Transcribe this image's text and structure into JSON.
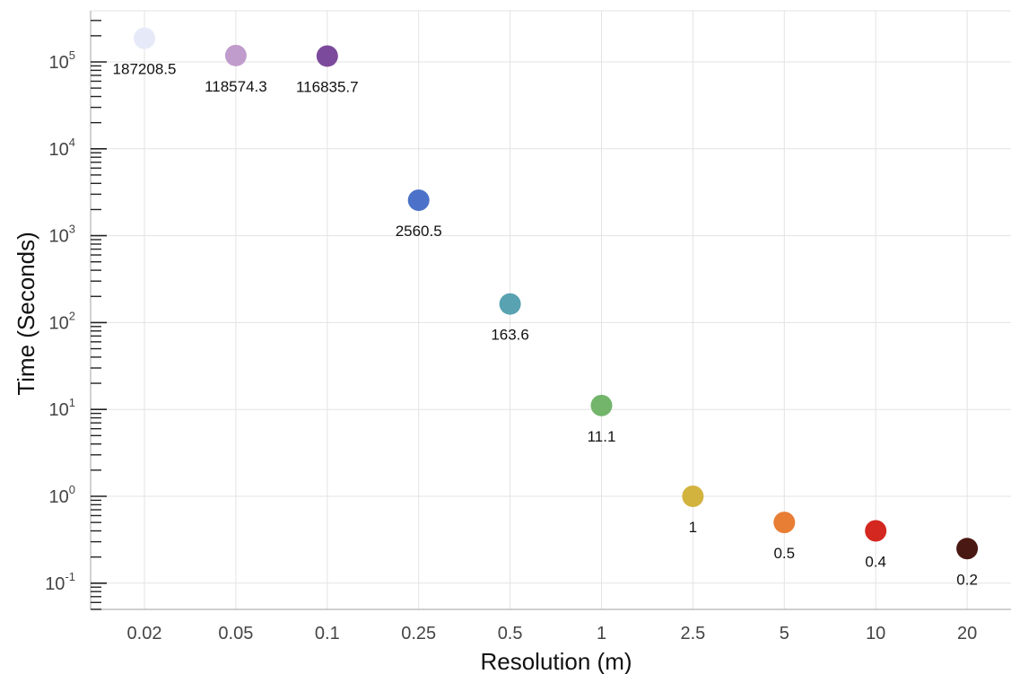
{
  "chart_data": {
    "type": "scatter",
    "x_scale": "categorical",
    "y_scale": "log",
    "grid": true,
    "legend": "none",
    "xlabel": "Resolution (m)",
    "ylabel": "Time (Seconds)",
    "ylim": [
      0.05,
      300000
    ],
    "categories": [
      "0.02",
      "0.05",
      "0.1",
      "0.25",
      "0.5",
      "1",
      "2.5",
      "5",
      "10",
      "20"
    ],
    "values": [
      187208.5,
      118574.3,
      116835.7,
      2560.5,
      163.6,
      11.1,
      1,
      0.5,
      0.4,
      0.25
    ],
    "labels": [
      "187208.5",
      "118574.3",
      "116835.7",
      "2560.5",
      "163.6",
      "11.1",
      "1",
      "0.5",
      "0.4",
      "0.2"
    ],
    "colors": [
      "#e6eaf8",
      "#c09ccd",
      "#7c4a9c",
      "#4b72c8",
      "#58a2b1",
      "#72b56b",
      "#d2b33e",
      "#e87d34",
      "#d4271f",
      "#4a1812"
    ],
    "y_ticks": [
      {
        "base": "10",
        "exp": "-1",
        "value": 0.1
      },
      {
        "base": "10",
        "exp": "0",
        "value": 1
      },
      {
        "base": "10",
        "exp": "1",
        "value": 10
      },
      {
        "base": "10",
        "exp": "2",
        "value": 100
      },
      {
        "base": "10",
        "exp": "3",
        "value": 1000
      },
      {
        "base": "10",
        "exp": "4",
        "value": 10000
      },
      {
        "base": "10",
        "exp": "5",
        "value": 100000
      }
    ]
  }
}
